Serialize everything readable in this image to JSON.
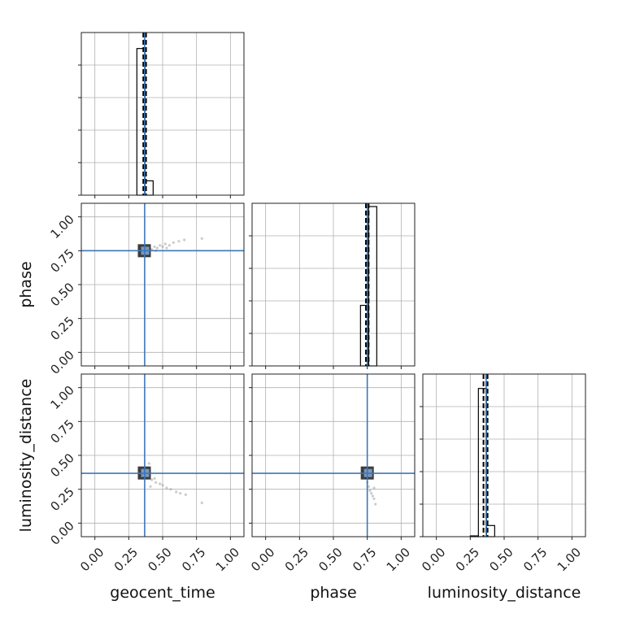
{
  "chart_data": {
    "type": "corner",
    "parameters": [
      "geocent_time",
      "phase",
      "luminosity_distance"
    ],
    "axis_range": [
      -0.1,
      1.1
    ],
    "ticks": [
      0.0,
      0.25,
      0.5,
      0.75,
      1.0
    ],
    "tick_labels": [
      "0.00",
      "0.25",
      "0.50",
      "0.75",
      "1.00"
    ],
    "grid": true,
    "truths": {
      "geocent_time": 0.3675,
      "phase": 0.75,
      "luminosity_distance": 0.3675
    },
    "colors": {
      "truth": "#3b77b7",
      "hist": "#000000",
      "grid": "#b0b0b0",
      "quantile": "#000000"
    },
    "histograms": [
      {
        "param": "geocent_time",
        "bins": [
          [
            0.25,
            0.31,
            0
          ],
          [
            0.31,
            0.37,
            0.92
          ],
          [
            0.37,
            0.43,
            0.09
          ],
          [
            0.43,
            0.49,
            0
          ]
        ],
        "quantiles": [
          0.3575,
          0.3675,
          0.3775
        ]
      },
      {
        "param": "phase",
        "bins": [
          [
            0.64,
            0.7,
            0
          ],
          [
            0.7,
            0.76,
            0.38
          ],
          [
            0.76,
            0.82,
            1.0
          ],
          [
            0.82,
            0.88,
            0
          ]
        ],
        "quantiles": [
          0.74,
          0.75,
          0.76
        ]
      },
      {
        "param": "luminosity_distance",
        "bins": [
          [
            0.25,
            0.31,
            0.005
          ],
          [
            0.31,
            0.37,
            0.93
          ],
          [
            0.37,
            0.43,
            0.07
          ],
          [
            0.43,
            0.49,
            0
          ]
        ],
        "quantiles": [
          0.3475,
          0.3675,
          0.3775
        ]
      }
    ],
    "scatter": [
      {
        "x": "geocent_time",
        "y": "phase",
        "points": [
          [
            0.34,
            0.76
          ],
          [
            0.35,
            0.74
          ],
          [
            0.36,
            0.77
          ],
          [
            0.37,
            0.75
          ],
          [
            0.38,
            0.76
          ],
          [
            0.39,
            0.74
          ],
          [
            0.4,
            0.77
          ],
          [
            0.42,
            0.76
          ],
          [
            0.44,
            0.78
          ],
          [
            0.46,
            0.77
          ],
          [
            0.48,
            0.79
          ],
          [
            0.5,
            0.78
          ],
          [
            0.52,
            0.8
          ],
          [
            0.55,
            0.79
          ],
          [
            0.58,
            0.81
          ],
          [
            0.62,
            0.82
          ],
          [
            0.66,
            0.83
          ],
          [
            0.79,
            0.84
          ],
          [
            0.45,
            0.75
          ],
          [
            0.53,
            0.77
          ]
        ],
        "core": [
          0.365,
          0.75
        ]
      },
      {
        "x": "geocent_time",
        "y": "luminosity_distance",
        "points": [
          [
            0.34,
            0.36
          ],
          [
            0.36,
            0.34
          ],
          [
            0.38,
            0.37
          ],
          [
            0.39,
            0.4
          ],
          [
            0.4,
            0.36
          ],
          [
            0.4,
            0.44
          ],
          [
            0.42,
            0.32
          ],
          [
            0.45,
            0.3
          ],
          [
            0.48,
            0.29
          ],
          [
            0.5,
            0.28
          ],
          [
            0.53,
            0.26
          ],
          [
            0.56,
            0.25
          ],
          [
            0.6,
            0.23
          ],
          [
            0.63,
            0.22
          ],
          [
            0.67,
            0.21
          ],
          [
            0.79,
            0.15
          ],
          [
            0.41,
            0.27
          ],
          [
            0.44,
            0.33
          ]
        ],
        "core": [
          0.365,
          0.37
        ]
      },
      {
        "x": "phase",
        "y": "luminosity_distance",
        "points": [
          [
            0.74,
            0.34
          ],
          [
            0.75,
            0.3
          ],
          [
            0.76,
            0.27
          ],
          [
            0.77,
            0.24
          ],
          [
            0.78,
            0.22
          ],
          [
            0.79,
            0.2
          ],
          [
            0.8,
            0.18
          ],
          [
            0.81,
            0.14
          ],
          [
            0.73,
            0.38
          ],
          [
            0.76,
            0.4
          ],
          [
            0.78,
            0.36
          ],
          [
            0.75,
            0.33
          ],
          [
            0.8,
            0.26
          ]
        ],
        "core": [
          0.75,
          0.37
        ]
      }
    ],
    "xlabels": [
      "geocent_time",
      "phase",
      "luminosity_distance"
    ],
    "ylabels": [
      "",
      "phase",
      "luminosity_distance"
    ]
  }
}
